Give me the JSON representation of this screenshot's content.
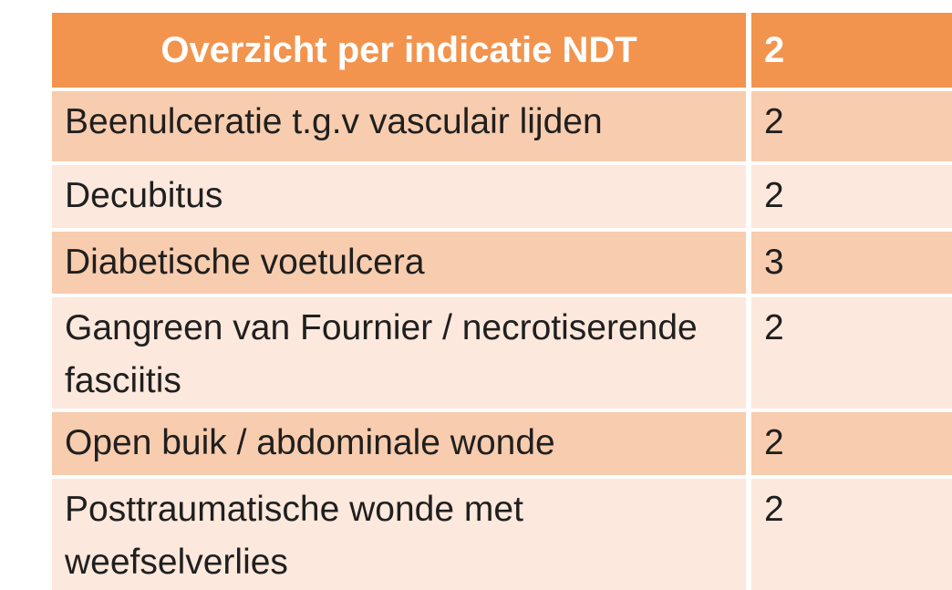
{
  "table": {
    "header": {
      "col1": "Overzicht per indicatie NDT",
      "col2_partial": "2"
    },
    "rows": [
      {
        "lines": [
          "Beenulceratie t.g.v vasculair lijden"
        ],
        "value_partial": "2"
      },
      {
        "lines": [
          "Decubitus"
        ],
        "value_partial": "2"
      },
      {
        "lines": [
          "Diabetische voetulcera"
        ],
        "value_partial": "3"
      },
      {
        "lines": [
          "Gangreen van Fournier / necrotiserende",
          "fasciitis"
        ],
        "value_partial": "2"
      },
      {
        "lines": [
          "Open buik / abdominale wonde"
        ],
        "value_partial": "2"
      },
      {
        "lines": [
          "Posttraumatische wonde met",
          "weefselverlies"
        ],
        "value_partial": "2"
      }
    ]
  },
  "colors": {
    "page-bg": "#FFFFFF",
    "header-bg": "#F2944E",
    "header-text": "#FFFFFF",
    "row-dark": "#F8CCAE",
    "row-light": "#FCE8DC",
    "body-text": "#1F1F1F"
  }
}
